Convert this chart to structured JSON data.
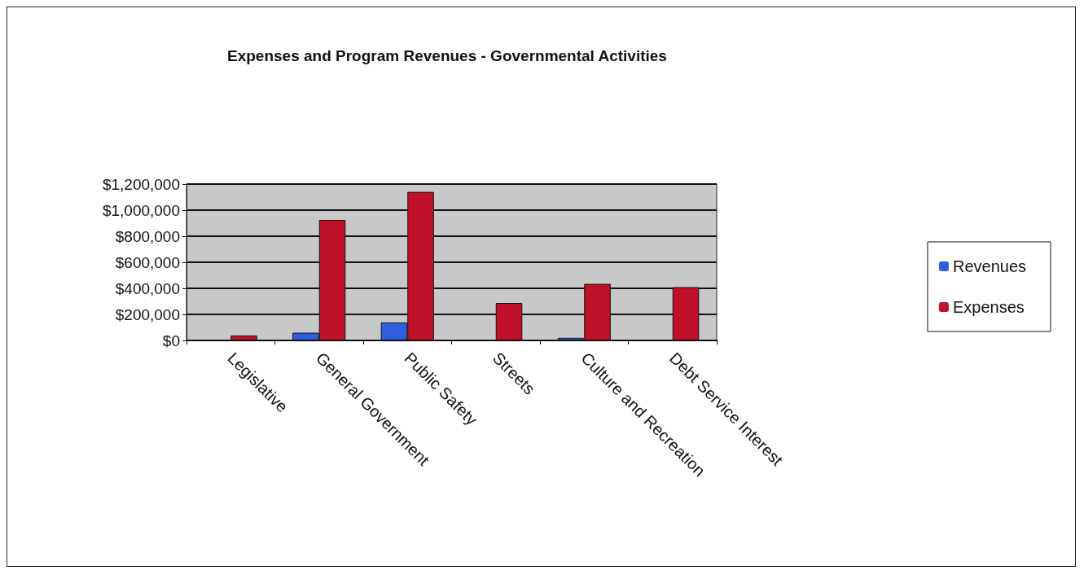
{
  "chart_data": {
    "type": "bar",
    "title": "Expenses and Program Revenues - Governmental Activities",
    "categories": [
      "Legislative",
      "General Government",
      "Public Safety",
      "Streets",
      "Culture and Recreation",
      "Debt Service Interest"
    ],
    "series": [
      {
        "name": "Revenues",
        "color": "#2f5fe0",
        "values": [
          null,
          59000,
          138000,
          null,
          20000,
          null
        ]
      },
      {
        "name": "Expenses",
        "color": "#c0102a",
        "values": [
          38000,
          925000,
          1140000,
          287000,
          434000,
          409000
        ]
      }
    ],
    "ylim": [
      0,
      1200000
    ],
    "yticks": [
      {
        "value": 0,
        "label": "$0"
      },
      {
        "value": 200000,
        "label": "$200,000"
      },
      {
        "value": 400000,
        "label": "$400,000"
      },
      {
        "value": 600000,
        "label": "$600,000"
      },
      {
        "value": 800000,
        "label": "$800,000"
      },
      {
        "value": 1000000,
        "label": "$1,000,000"
      },
      {
        "value": 1200000,
        "label": "$1,200,000"
      }
    ],
    "grid": "y",
    "legend": "right"
  }
}
